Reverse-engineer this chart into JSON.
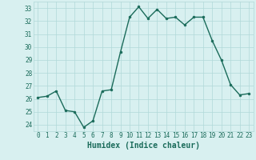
{
  "xlabel": "Humidex (Indice chaleur)",
  "x": [
    0,
    1,
    2,
    3,
    4,
    5,
    6,
    7,
    8,
    9,
    10,
    11,
    12,
    13,
    14,
    15,
    16,
    17,
    18,
    19,
    20,
    21,
    22,
    23
  ],
  "y": [
    26.1,
    26.2,
    26.6,
    25.1,
    25.0,
    23.8,
    24.3,
    26.6,
    26.7,
    29.6,
    32.3,
    33.1,
    32.2,
    32.9,
    32.2,
    32.3,
    31.7,
    32.3,
    32.3,
    30.5,
    29.0,
    27.1,
    26.3,
    26.4
  ],
  "line_color": "#1a6b5a",
  "marker": "o",
  "markersize": 2.0,
  "linewidth": 1.0,
  "bg_color": "#d8f0f0",
  "grid_color": "#b0d8d8",
  "ylim": [
    23.5,
    33.5
  ],
  "yticks": [
    24,
    25,
    26,
    27,
    28,
    29,
    30,
    31,
    32,
    33
  ],
  "xlim": [
    -0.5,
    23.5
  ],
  "xticks": [
    0,
    1,
    2,
    3,
    4,
    5,
    6,
    7,
    8,
    9,
    10,
    11,
    12,
    13,
    14,
    15,
    16,
    17,
    18,
    19,
    20,
    21,
    22,
    23
  ],
  "tick_fontsize": 5.5,
  "xlabel_fontsize": 7.0,
  "label_color": "#1a6b5a"
}
